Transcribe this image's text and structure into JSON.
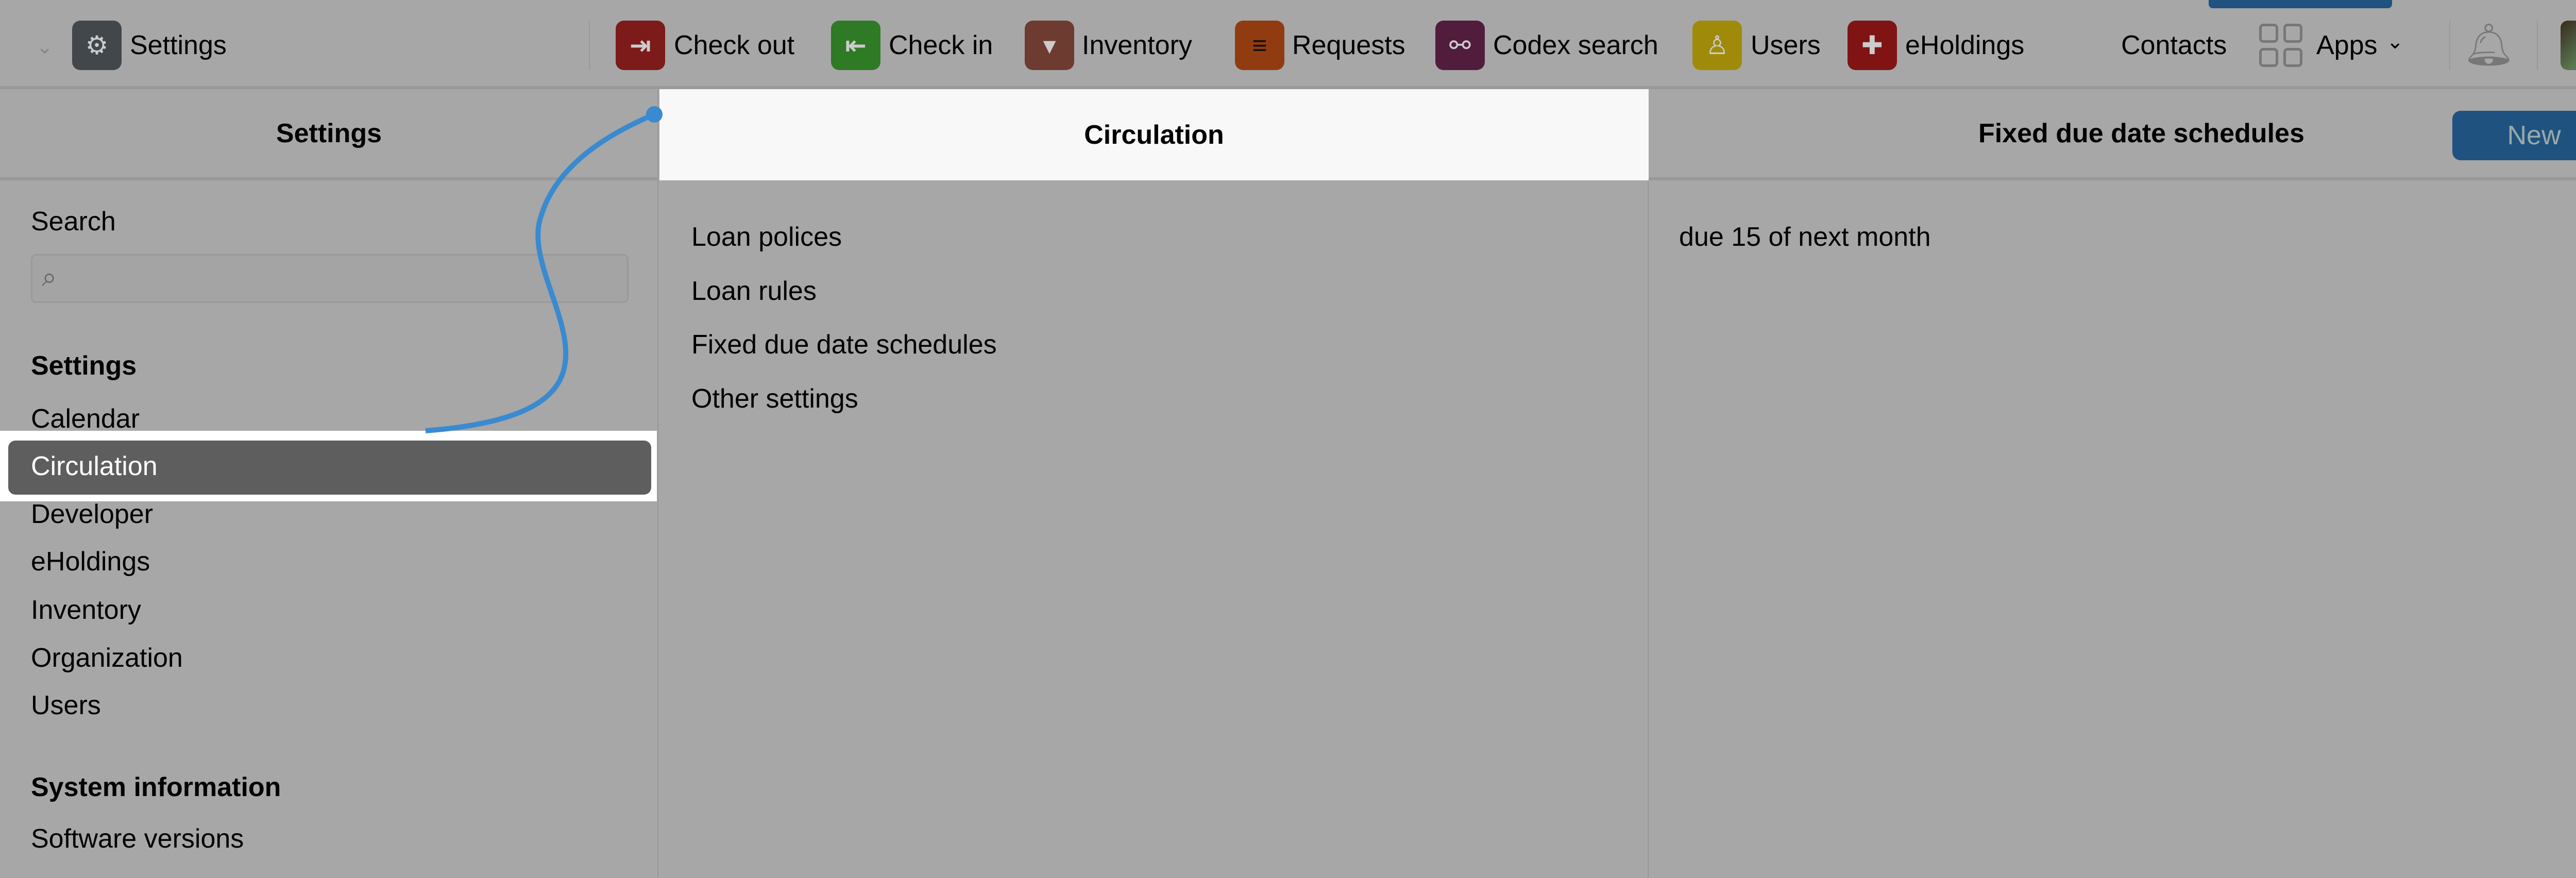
{
  "header": {
    "current_app": "Settings",
    "apps": [
      {
        "label": "Check out",
        "icon": "check-out-icon",
        "color": "#7d1a1a"
      },
      {
        "label": "Check in",
        "icon": "check-in-icon",
        "color": "#2f7a25"
      },
      {
        "label": "Inventory",
        "icon": "inventory-icon",
        "color": "#6e3b30"
      },
      {
        "label": "Requests",
        "icon": "requests-icon",
        "color": "#913c10"
      },
      {
        "label": "Codex search",
        "icon": "codex-search-icon",
        "color": "#521c3c"
      },
      {
        "label": "Users",
        "icon": "users-icon",
        "color": "#a08a0a"
      },
      {
        "label": "eHoldings",
        "icon": "eholdings-icon",
        "color": "#801414"
      }
    ],
    "contacts": "Contacts",
    "apps_menu": "Apps"
  },
  "settings_pane": {
    "title": "Settings",
    "search_label": "Search",
    "search_value": "",
    "section1": "Settings",
    "items": [
      "Calendar",
      "Circulation",
      "Developer",
      "eHoldings",
      "Inventory",
      "Organization",
      "Users"
    ],
    "section2": "System information",
    "items2": [
      "Software versions"
    ]
  },
  "circulation_pane": {
    "title": "Circulation",
    "items": [
      "Loan polices",
      "Loan rules",
      "Fixed due date schedules",
      "Other settings"
    ]
  },
  "schedules_pane": {
    "title": "Fixed due date schedules",
    "new_label": "New",
    "items": [
      "due 15 of next month"
    ]
  },
  "colors": {
    "accent": "#20527f",
    "highlight": "#ffffff",
    "curve": "#3a8ad0"
  }
}
